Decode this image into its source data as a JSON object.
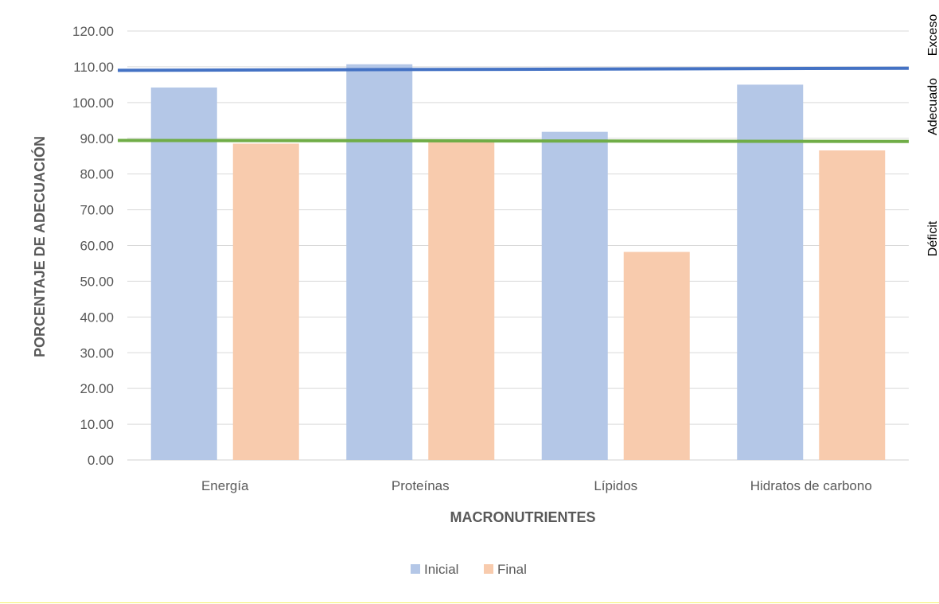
{
  "chart_data": {
    "type": "bar",
    "title": "",
    "xlabel": "MACRONUTRIENTES",
    "ylabel": "PORCENTAJE DE ADECUACIÓN",
    "categories": [
      "Energía",
      "Proteínas",
      "Lípidos",
      "Hidratos de carbono"
    ],
    "series": [
      {
        "name": "Inicial",
        "color": "#b4c7e7",
        "values": [
          104.2,
          110.7,
          91.8,
          105.0
        ]
      },
      {
        "name": "Final",
        "color": "#f8cbad",
        "values": [
          88.5,
          89.0,
          58.2,
          86.6
        ]
      }
    ],
    "ylim": [
      0,
      120
    ],
    "yticks": [
      "0.00",
      "10.00",
      "20.00",
      "30.00",
      "40.00",
      "50.00",
      "60.00",
      "70.00",
      "80.00",
      "90.00",
      "100.00",
      "110.00",
      "120.00"
    ],
    "grid": true,
    "legend_position": "bottom",
    "reference_lines": [
      {
        "color": "#4472c4",
        "value_start": 109.0,
        "value_end": 109.6
      },
      {
        "color": "#70ad47",
        "value_start": 89.4,
        "value_end": 89.1
      }
    ],
    "zone_labels": [
      "Exceso",
      "Adecuado",
      "Déficit"
    ]
  }
}
